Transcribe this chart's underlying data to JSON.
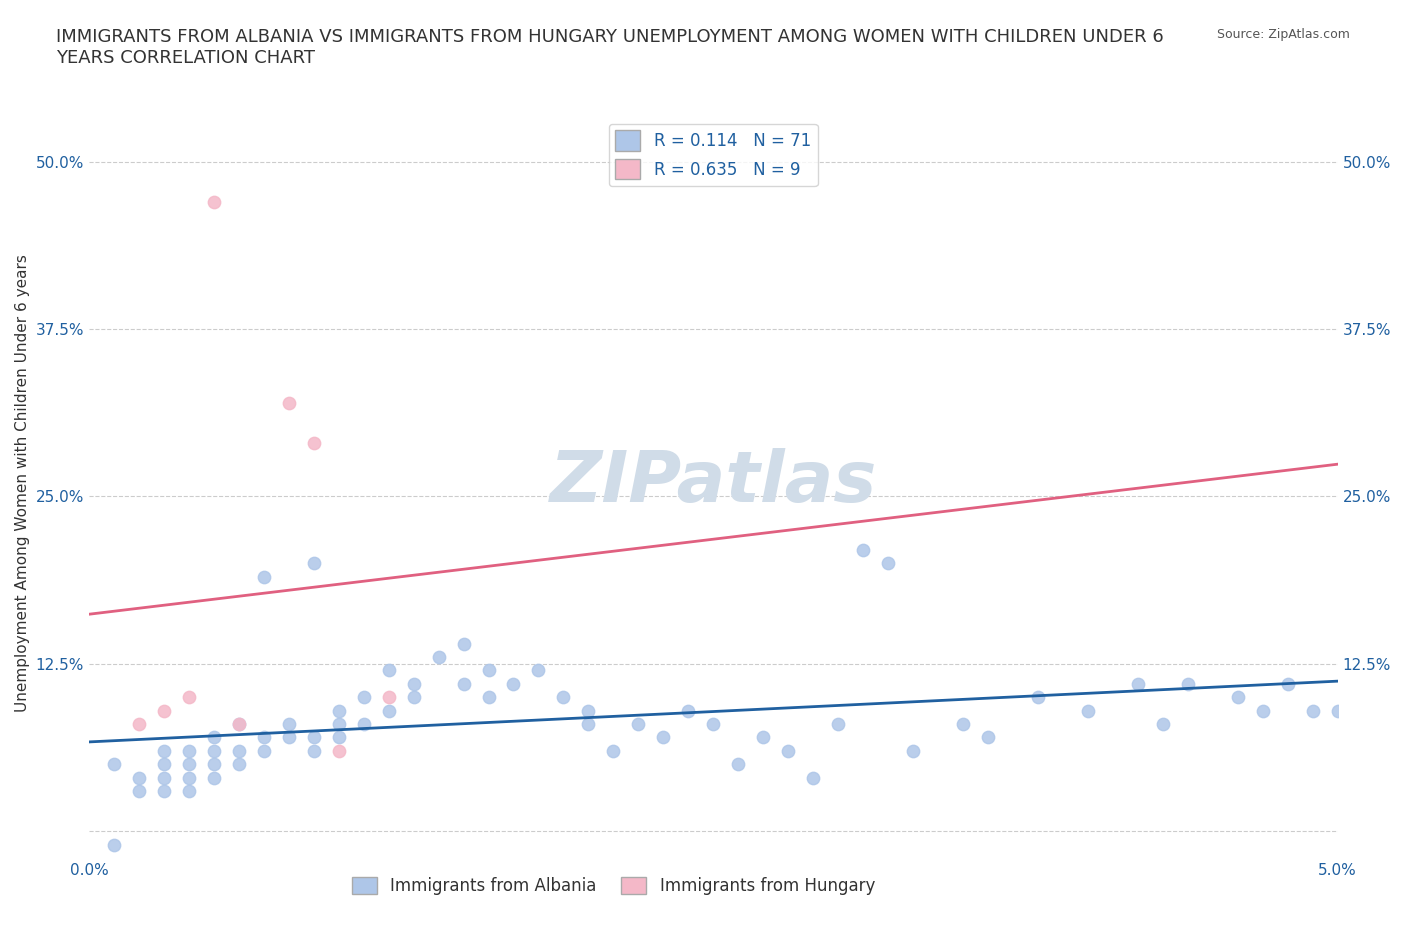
{
  "title": "IMMIGRANTS FROM ALBANIA VS IMMIGRANTS FROM HUNGARY UNEMPLOYMENT AMONG WOMEN WITH CHILDREN UNDER 6\nYEARS CORRELATION CHART",
  "source_text": "Source: ZipAtlas.com",
  "xlabel": "",
  "ylabel": "Unemployment Among Women with Children Under 6 years",
  "xlim": [
    0.0,
    0.05
  ],
  "ylim": [
    -0.02,
    0.54
  ],
  "xticks": [
    0.0,
    0.05
  ],
  "xticklabels": [
    "0.0%",
    "5.0%"
  ],
  "yticks": [
    0.0,
    0.125,
    0.25,
    0.375,
    0.5
  ],
  "yticklabels": [
    "",
    "12.5%",
    "25.0%",
    "37.5%",
    "50.0%"
  ],
  "background_color": "#ffffff",
  "watermark_text": "ZIPatlas",
  "albania_color": "#aec6e8",
  "hungary_color": "#f4b8c8",
  "albania_line_color": "#2060a0",
  "hungary_line_color": "#e06080",
  "legend_box_albania": "#aec6e8",
  "legend_box_hungary": "#f4b8c8",
  "R_albania": 0.114,
  "N_albania": 71,
  "R_hungary": 0.635,
  "N_hungary": 9,
  "albania_x": [
    0.001,
    0.002,
    0.002,
    0.003,
    0.003,
    0.003,
    0.003,
    0.004,
    0.004,
    0.004,
    0.004,
    0.005,
    0.005,
    0.005,
    0.005,
    0.006,
    0.006,
    0.006,
    0.007,
    0.007,
    0.007,
    0.008,
    0.008,
    0.009,
    0.009,
    0.009,
    0.01,
    0.01,
    0.01,
    0.011,
    0.011,
    0.012,
    0.012,
    0.013,
    0.013,
    0.014,
    0.015,
    0.015,
    0.016,
    0.016,
    0.017,
    0.018,
    0.019,
    0.02,
    0.02,
    0.021,
    0.022,
    0.023,
    0.024,
    0.025,
    0.026,
    0.027,
    0.028,
    0.029,
    0.03,
    0.031,
    0.032,
    0.033,
    0.035,
    0.036,
    0.038,
    0.04,
    0.042,
    0.043,
    0.044,
    0.046,
    0.047,
    0.048,
    0.049,
    0.05,
    0.001
  ],
  "albania_y": [
    0.05,
    0.03,
    0.04,
    0.05,
    0.06,
    0.04,
    0.03,
    0.05,
    0.04,
    0.06,
    0.03,
    0.07,
    0.05,
    0.06,
    0.04,
    0.08,
    0.06,
    0.05,
    0.07,
    0.06,
    0.19,
    0.08,
    0.07,
    0.06,
    0.07,
    0.2,
    0.08,
    0.07,
    0.09,
    0.1,
    0.08,
    0.12,
    0.09,
    0.1,
    0.11,
    0.13,
    0.11,
    0.14,
    0.12,
    0.1,
    0.11,
    0.12,
    0.1,
    0.08,
    0.09,
    0.06,
    0.08,
    0.07,
    0.09,
    0.08,
    0.05,
    0.07,
    0.06,
    0.04,
    0.08,
    0.21,
    0.2,
    0.06,
    0.08,
    0.07,
    0.1,
    0.09,
    0.11,
    0.08,
    0.11,
    0.1,
    0.09,
    0.11,
    0.09,
    0.09,
    -0.01
  ],
  "hungary_x": [
    0.002,
    0.003,
    0.004,
    0.005,
    0.006,
    0.008,
    0.009,
    0.01,
    0.012
  ],
  "hungary_y": [
    0.08,
    0.09,
    0.1,
    0.47,
    0.08,
    0.32,
    0.29,
    0.06,
    0.1
  ],
  "grid_color": "#cccccc",
  "title_fontsize": 13,
  "axis_label_fontsize": 11,
  "tick_fontsize": 11,
  "legend_fontsize": 12,
  "watermark_color": "#d0dce8",
  "watermark_fontsize": 52
}
